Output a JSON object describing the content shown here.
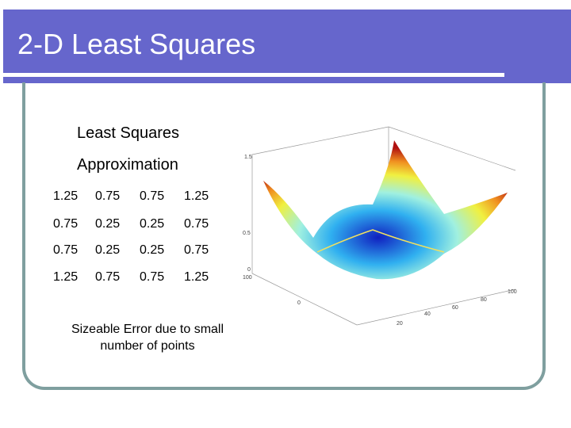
{
  "header": {
    "title": "2-D Least Squares"
  },
  "body": {
    "heading": [
      "Least Squares",
      "Approximation"
    ],
    "matrix": [
      [
        "1.25",
        "0.75",
        "0.75",
        "1.25"
      ],
      [
        "0.75",
        "0.25",
        "0.25",
        "0.75"
      ],
      [
        "0.75",
        "0.25",
        "0.25",
        "0.75"
      ],
      [
        "1.25",
        "0.75",
        "0.75",
        "1.25"
      ]
    ],
    "note": "Sizeable Error due to small number of points"
  },
  "figure": {
    "z_labels": [
      "1.5",
      "0.5",
      "0"
    ],
    "axis_labels": [
      "100",
      "80",
      "60",
      "40",
      "20",
      "0",
      "100"
    ]
  }
}
